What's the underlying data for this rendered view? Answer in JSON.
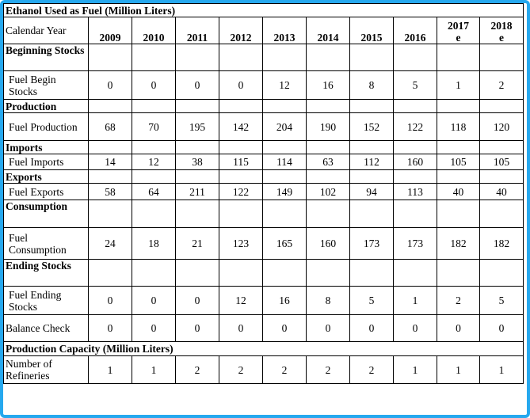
{
  "table": {
    "title": "Ethanol Used as Fuel (Million Liters)",
    "header_label": "Calendar Year",
    "years": [
      {
        "top": "",
        "bottom": "2009"
      },
      {
        "top": "",
        "bottom": "2010"
      },
      {
        "top": "",
        "bottom": "2011"
      },
      {
        "top": "",
        "bottom": "2012"
      },
      {
        "top": "",
        "bottom": "2013"
      },
      {
        "top": "",
        "bottom": "2014"
      },
      {
        "top": "",
        "bottom": "2015"
      },
      {
        "top": "",
        "bottom": "2016"
      },
      {
        "top": "2017",
        "bottom": "e"
      },
      {
        "top": "2018",
        "bottom": "e"
      }
    ],
    "rows": [
      {
        "type": "section",
        "label": "Beginning Stocks"
      },
      {
        "type": "data",
        "label": "Fuel Begin Stocks",
        "values": [
          "0",
          "0",
          "0",
          "0",
          "12",
          "16",
          "8",
          "5",
          "1",
          "2"
        ]
      },
      {
        "type": "section-inline",
        "label": "Production"
      },
      {
        "type": "data",
        "label": "Fuel Production",
        "values": [
          "68",
          "70",
          "195",
          "142",
          "204",
          "190",
          "152",
          "122",
          "118",
          "120"
        ]
      },
      {
        "type": "section-inline",
        "label": "Imports"
      },
      {
        "type": "data",
        "label": "Fuel Imports",
        "values": [
          "14",
          "12",
          "38",
          "115",
          "114",
          "63",
          "112",
          "160",
          "105",
          "105"
        ]
      },
      {
        "type": "section-inline",
        "label": "Exports"
      },
      {
        "type": "data",
        "label": "Fuel Exports",
        "values": [
          "58",
          "64",
          "211",
          "122",
          "149",
          "102",
          "94",
          "113",
          "40",
          "40"
        ]
      },
      {
        "type": "section",
        "label": "Consumption"
      },
      {
        "type": "data",
        "label": "Fuel Consumption",
        "values": [
          "24",
          "18",
          "21",
          "123",
          "165",
          "160",
          "173",
          "173",
          "182",
          "182"
        ]
      },
      {
        "type": "section",
        "label": "Ending Stocks"
      },
      {
        "type": "data",
        "label": "Fuel Ending Stocks",
        "values": [
          "0",
          "0",
          "0",
          "12",
          "16",
          "8",
          "5",
          "1",
          "2",
          "5"
        ]
      },
      {
        "type": "data-plain",
        "label": "Balance Check",
        "values": [
          "0",
          "0",
          "0",
          "0",
          "0",
          "0",
          "0",
          "0",
          "0",
          "0"
        ]
      },
      {
        "type": "title",
        "label": "Production Capacity (Million Liters)"
      },
      {
        "type": "data-plain",
        "label": "Number of Refineries",
        "values": [
          "1",
          "1",
          "2",
          "2",
          "2",
          "2",
          "2",
          "1",
          "1",
          "1"
        ]
      }
    ]
  }
}
